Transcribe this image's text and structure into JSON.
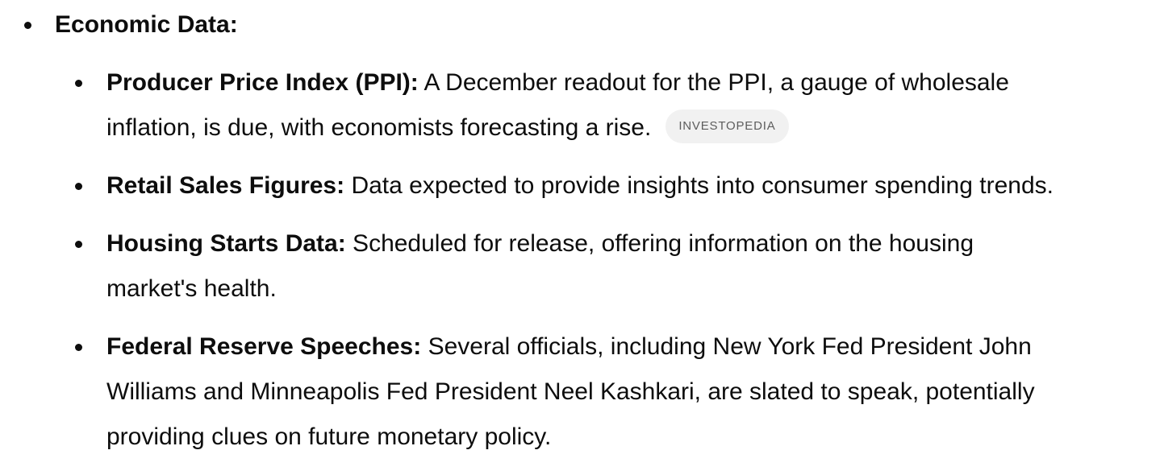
{
  "section": {
    "heading": "Economic Data:"
  },
  "items": [
    {
      "title": "Producer Price Index (PPI):",
      "lines": [
        " A December readout for the PPI, a gauge of wholesale",
        "inflation, is due, with economists forecasting a rise."
      ],
      "source": "INVESTOPEDIA"
    },
    {
      "title": "Retail Sales Figures:",
      "lines": [
        " Data expected to provide insights into consumer spending trends."
      ]
    },
    {
      "title": "Housing Starts Data:",
      "lines": [
        " Scheduled for release, offering information on the housing",
        "market's health."
      ]
    },
    {
      "title": "Federal Reserve Speeches:",
      "lines": [
        " Several officials, including New York Fed President John",
        "Williams and Minneapolis Fed President Neel Kashkari, are slated to speak, potentially",
        "providing clues on future monetary policy."
      ]
    }
  ]
}
